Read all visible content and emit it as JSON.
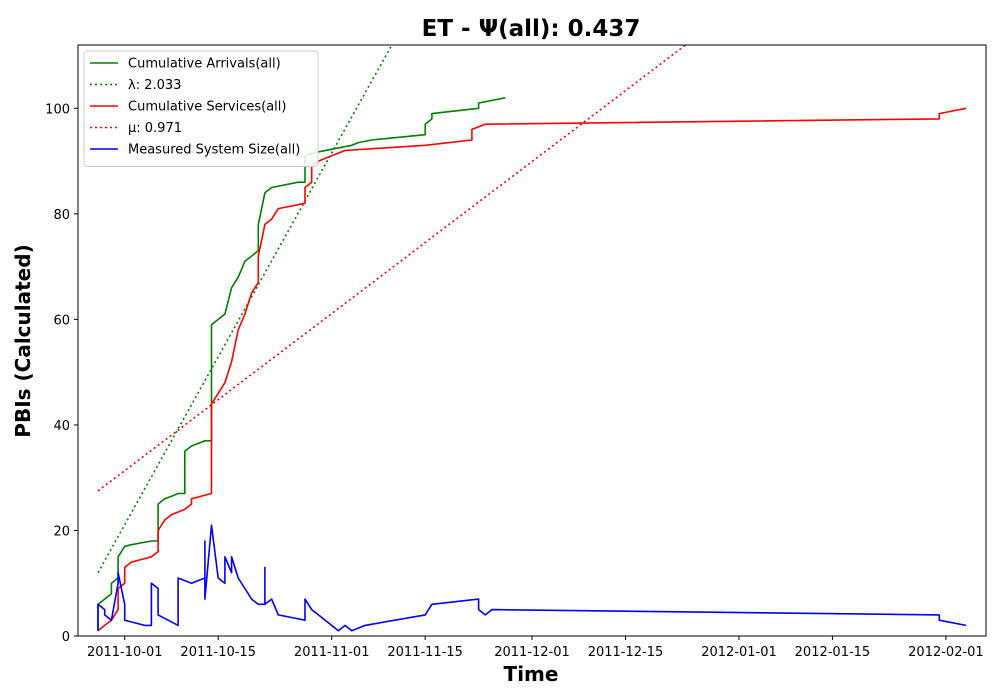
{
  "chart_data": {
    "type": "line",
    "title": "ET -  Ψ(all): 0.437",
    "xlabel": "Time",
    "ylabel": "PBIs (Calculated)",
    "xlim": [
      "2011-09-24",
      "2012-02-07"
    ],
    "ylim": [
      0,
      112
    ],
    "x_ticks": [
      "2011-10-01",
      "2011-10-15",
      "2011-11-01",
      "2011-11-15",
      "2011-12-01",
      "2011-12-15",
      "2012-01-01",
      "2012-01-15",
      "2012-02-01"
    ],
    "y_ticks": [
      0,
      20,
      40,
      60,
      80,
      100
    ],
    "grid": false,
    "legend_position": "top-left",
    "series": [
      {
        "name": "Cumulative Arrivals(all)",
        "color": "#008000",
        "style": "solid",
        "points": [
          [
            "2011-09-27",
            1
          ],
          [
            "2011-09-27",
            6
          ],
          [
            "2011-09-28",
            7
          ],
          [
            "2011-09-29",
            8
          ],
          [
            "2011-09-29",
            10
          ],
          [
            "2011-09-30",
            11
          ],
          [
            "2011-09-30",
            15
          ],
          [
            "2011-10-01",
            17
          ],
          [
            "2011-10-02",
            17.3
          ],
          [
            "2011-10-05",
            18
          ],
          [
            "2011-10-06",
            18
          ],
          [
            "2011-10-06",
            25
          ],
          [
            "2011-10-07",
            26
          ],
          [
            "2011-10-08",
            26.5
          ],
          [
            "2011-10-09",
            27
          ],
          [
            "2011-10-10",
            27
          ],
          [
            "2011-10-10",
            35
          ],
          [
            "2011-10-11",
            36
          ],
          [
            "2011-10-13",
            37
          ],
          [
            "2011-10-14",
            37
          ],
          [
            "2011-10-14",
            59
          ],
          [
            "2011-10-15",
            60
          ],
          [
            "2011-10-16",
            61
          ],
          [
            "2011-10-17",
            66
          ],
          [
            "2011-10-18",
            68
          ],
          [
            "2011-10-19",
            71
          ],
          [
            "2011-10-20",
            72
          ],
          [
            "2011-10-21",
            73
          ],
          [
            "2011-10-21",
            78
          ],
          [
            "2011-10-22",
            84
          ],
          [
            "2011-10-23",
            85
          ],
          [
            "2011-10-27",
            86
          ],
          [
            "2011-10-28",
            86
          ],
          [
            "2011-10-28",
            91
          ],
          [
            "2011-10-29",
            91.5
          ],
          [
            "2011-11-04",
            93
          ],
          [
            "2011-11-05",
            93.5
          ],
          [
            "2011-11-07",
            94
          ],
          [
            "2011-11-15",
            95
          ],
          [
            "2011-11-15",
            97
          ],
          [
            "2011-11-16",
            98
          ],
          [
            "2011-11-16",
            99
          ],
          [
            "2011-11-23",
            100
          ],
          [
            "2011-11-23",
            101
          ],
          [
            "2011-11-27",
            102
          ]
        ]
      },
      {
        "name": "λ: 2.033",
        "color": "#008000",
        "style": "dotted",
        "points": [
          [
            "2011-09-27",
            12
          ],
          [
            "2011-11-10",
            112
          ]
        ]
      },
      {
        "name": "Cumulative Services(all)",
        "color": "#ff0000",
        "style": "solid",
        "points": [
          [
            "2011-09-27",
            1
          ],
          [
            "2011-09-28",
            2
          ],
          [
            "2011-09-29",
            3
          ],
          [
            "2011-09-30",
            5
          ],
          [
            "2011-09-30",
            9
          ],
          [
            "2011-10-01",
            10
          ],
          [
            "2011-10-01",
            13
          ],
          [
            "2011-10-02",
            14
          ],
          [
            "2011-10-05",
            15
          ],
          [
            "2011-10-06",
            16
          ],
          [
            "2011-10-06",
            20
          ],
          [
            "2011-10-07",
            22
          ],
          [
            "2011-10-08",
            23
          ],
          [
            "2011-10-10",
            24
          ],
          [
            "2011-10-11",
            25
          ],
          [
            "2011-10-11",
            26
          ],
          [
            "2011-10-14",
            27
          ],
          [
            "2011-10-14",
            44
          ],
          [
            "2011-10-15",
            46
          ],
          [
            "2011-10-16",
            48
          ],
          [
            "2011-10-17",
            52
          ],
          [
            "2011-10-18",
            58
          ],
          [
            "2011-10-19",
            61
          ],
          [
            "2011-10-20",
            65
          ],
          [
            "2011-10-21",
            67
          ],
          [
            "2011-10-21",
            72
          ],
          [
            "2011-10-22",
            78
          ],
          [
            "2011-10-23",
            79
          ],
          [
            "2011-10-24",
            81
          ],
          [
            "2011-10-28",
            82
          ],
          [
            "2011-10-28",
            85
          ],
          [
            "2011-10-29",
            86
          ],
          [
            "2011-10-29",
            89
          ],
          [
            "2011-10-30",
            90
          ],
          [
            "2011-11-01",
            91
          ],
          [
            "2011-11-03",
            92
          ],
          [
            "2011-11-15",
            93
          ],
          [
            "2011-11-22",
            94
          ],
          [
            "2011-11-22",
            96
          ],
          [
            "2011-11-24",
            97
          ],
          [
            "2012-01-31",
            98
          ],
          [
            "2012-01-31",
            99
          ],
          [
            "2012-02-04",
            100
          ]
        ]
      },
      {
        "name": "μ: 0.971",
        "color": "#ff0000",
        "style": "dotted",
        "points": [
          [
            "2011-09-27",
            27.5
          ],
          [
            "2011-12-24",
            112
          ]
        ]
      },
      {
        "name": "Measured System Size(all)",
        "color": "#0000ff",
        "style": "solid",
        "points": [
          [
            "2011-09-27",
            1
          ],
          [
            "2011-09-27",
            6
          ],
          [
            "2011-09-28",
            5
          ],
          [
            "2011-09-28",
            4
          ],
          [
            "2011-09-29",
            3
          ],
          [
            "2011-09-30",
            10
          ],
          [
            "2011-09-30",
            12
          ],
          [
            "2011-10-01",
            6
          ],
          [
            "2011-10-01",
            3
          ],
          [
            "2011-10-04",
            2
          ],
          [
            "2011-10-05",
            2
          ],
          [
            "2011-10-05",
            10
          ],
          [
            "2011-10-06",
            9
          ],
          [
            "2011-10-06",
            4
          ],
          [
            "2011-10-09",
            2
          ],
          [
            "2011-10-09",
            11
          ],
          [
            "2011-10-11",
            10
          ],
          [
            "2011-10-13",
            11
          ],
          [
            "2011-10-13",
            18
          ],
          [
            "2011-10-13",
            7
          ],
          [
            "2011-10-14",
            21
          ],
          [
            "2011-10-15",
            11
          ],
          [
            "2011-10-16",
            10
          ],
          [
            "2011-10-16",
            15
          ],
          [
            "2011-10-17",
            12
          ],
          [
            "2011-10-17",
            15
          ],
          [
            "2011-10-18",
            11
          ],
          [
            "2011-10-19",
            9
          ],
          [
            "2011-10-20",
            7
          ],
          [
            "2011-10-21",
            6
          ],
          [
            "2011-10-22",
            6
          ],
          [
            "2011-10-22",
            13
          ],
          [
            "2011-10-22",
            6
          ],
          [
            "2011-10-23",
            7
          ],
          [
            "2011-10-24",
            4
          ],
          [
            "2011-10-28",
            3
          ],
          [
            "2011-10-28",
            7
          ],
          [
            "2011-10-29",
            5
          ],
          [
            "2011-10-30",
            4
          ],
          [
            "2011-11-01",
            2
          ],
          [
            "2011-11-02",
            1
          ],
          [
            "2011-11-03",
            2
          ],
          [
            "2011-11-04",
            1
          ],
          [
            "2011-11-06",
            2
          ],
          [
            "2011-11-15",
            4
          ],
          [
            "2011-11-16",
            6
          ],
          [
            "2011-11-23",
            7
          ],
          [
            "2011-11-23",
            5
          ],
          [
            "2011-11-24",
            4
          ],
          [
            "2011-11-25",
            5
          ],
          [
            "2012-01-31",
            4
          ],
          [
            "2012-01-31",
            3
          ],
          [
            "2012-02-04",
            2
          ]
        ]
      }
    ]
  }
}
